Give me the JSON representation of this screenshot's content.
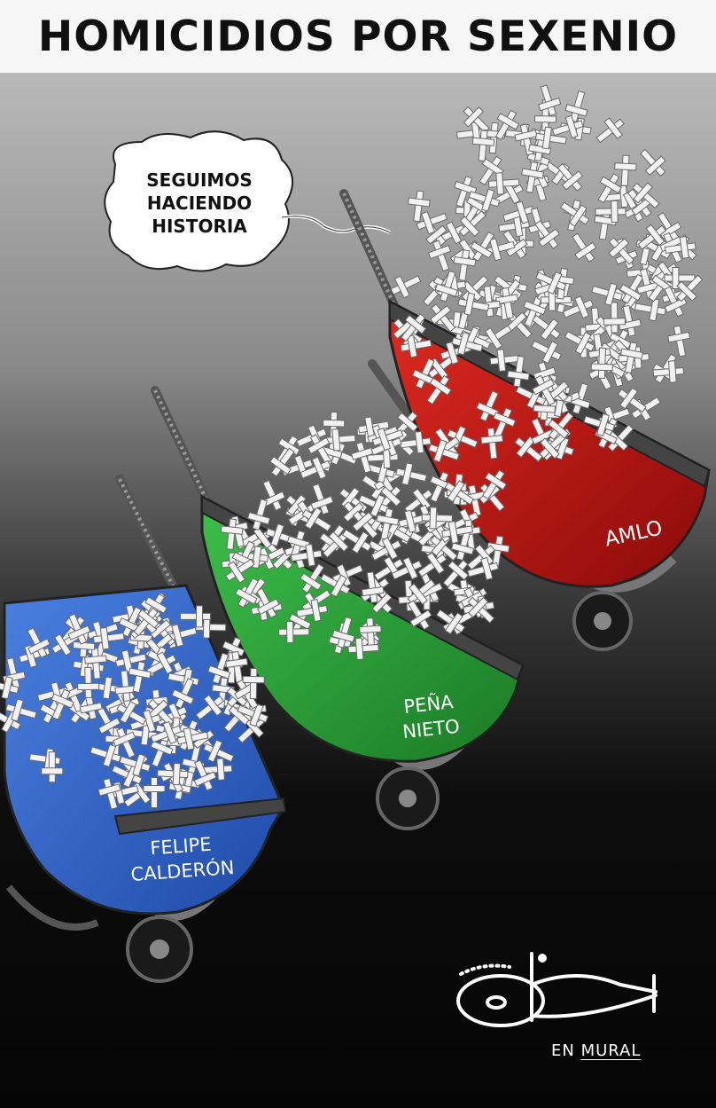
{
  "title": "HOMICIDIOS POR SEXENIO",
  "speech_bubble": {
    "lines": [
      "SEGUIMOS",
      "HACIENDO",
      "HISTORIA"
    ]
  },
  "wheelbarrows": [
    {
      "label_lines": [
        "FELIPE",
        "CALDERÓN"
      ],
      "color": "#2f63c8"
    },
    {
      "label_lines": [
        "PEÑA",
        "NIETO"
      ],
      "color": "#27a034"
    },
    {
      "label_lines": [
        "AMLO"
      ],
      "color": "#c01515"
    }
  ],
  "credit": {
    "prefix": "EN",
    "publication": "MURAL"
  },
  "icons": {
    "signature": "cartoonist-signature-icon",
    "crosses": "cross-pile-icon"
  }
}
